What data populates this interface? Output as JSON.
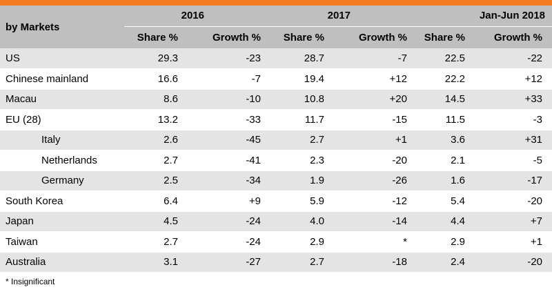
{
  "header": {
    "market_label": "by Markets",
    "years": [
      "2016",
      "2017",
      "Jan-Jun 2018"
    ],
    "share_label": "Share %",
    "growth_label": "Growth %"
  },
  "rows": [
    {
      "name": "US",
      "indent": false,
      "v": [
        "29.3",
        "-23",
        "28.7",
        "-7",
        "22.5",
        "-22"
      ]
    },
    {
      "name": "Chinese mainland",
      "indent": false,
      "v": [
        "16.6",
        "-7",
        "19.4",
        "+12",
        "22.2",
        "+12"
      ]
    },
    {
      "name": "Macau",
      "indent": false,
      "v": [
        "8.6",
        "-10",
        "10.8",
        "+20",
        "14.5",
        "+33"
      ]
    },
    {
      "name": "EU (28)",
      "indent": false,
      "v": [
        "13.2",
        "-33",
        "11.7",
        "-15",
        "11.5",
        "-3"
      ]
    },
    {
      "name": "Italy",
      "indent": true,
      "v": [
        "2.6",
        "-45",
        "2.7",
        "+1",
        "3.6",
        "+31"
      ]
    },
    {
      "name": "Netherlands",
      "indent": true,
      "v": [
        "2.7",
        "-41",
        "2.3",
        "-20",
        "2.1",
        "-5"
      ]
    },
    {
      "name": "Germany",
      "indent": true,
      "v": [
        "2.5",
        "-34",
        "1.9",
        "-26",
        "1.6",
        "-17"
      ]
    },
    {
      "name": "South Korea",
      "indent": false,
      "v": [
        "6.4",
        "+9",
        "5.9",
        "-12",
        "5.4",
        "-20"
      ]
    },
    {
      "name": "Japan",
      "indent": false,
      "v": [
        "4.5",
        "-24",
        "4.0",
        "-14",
        "4.4",
        "+7"
      ]
    },
    {
      "name": "Taiwan",
      "indent": false,
      "v": [
        "2.7",
        "-24",
        "2.9",
        "*",
        "2.9",
        "+1"
      ]
    },
    {
      "name": "Australia",
      "indent": false,
      "v": [
        "3.1",
        "-27",
        "2.7",
        "-18",
        "2.4",
        "-20"
      ]
    }
  ],
  "footnote": "* Insignificant",
  "colors": {
    "accent_bar": "#f47b20",
    "header_bg": "#bfbfbf",
    "row_shade": "#e4e4e4"
  }
}
